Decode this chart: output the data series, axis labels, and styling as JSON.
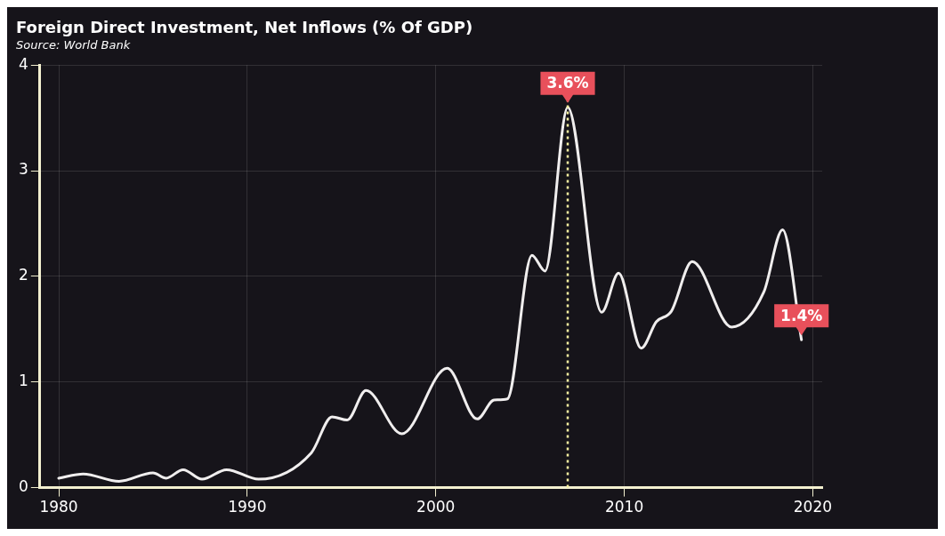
{
  "chart_data": {
    "type": "line",
    "title": "Foreign Direct Investment, Net Inflows (% Of GDP)",
    "subtitle": "Source: World Bank",
    "series": [
      {
        "color": "#f0eeee",
        "x": [
          1980,
          1981.3,
          1983.2,
          1985.0,
          1985.7,
          1986.6,
          1987.6,
          1988.9,
          1990.6,
          1993.4,
          1994.5,
          1995.3,
          1996.3,
          1998.2,
          2000.6,
          2002.2,
          2003.1,
          2003.8,
          2005.1,
          2005.8,
          2007.0,
          2008.8,
          2009.7,
          2010.9,
          2011.7,
          2012.5,
          2013.6,
          2015.7,
          2017.4,
          2018.4,
          2019.4
        ],
        "values": [
          0.09,
          0.13,
          0.06,
          0.14,
          0.09,
          0.17,
          0.08,
          0.17,
          0.08,
          0.33,
          0.67,
          0.64,
          0.92,
          0.51,
          1.13,
          0.65,
          0.83,
          0.84,
          2.2,
          2.05,
          3.6,
          1.66,
          2.03,
          1.32,
          1.57,
          1.67,
          2.14,
          1.52,
          1.85,
          2.44,
          1.4
        ]
      }
    ],
    "xlim": [
      1979,
      2020.5
    ],
    "xticks": [
      1980,
      1990,
      2000,
      2010,
      2020
    ],
    "ylim": [
      0,
      4
    ],
    "yticks": [
      0,
      1,
      2,
      3,
      4
    ],
    "grid": true,
    "legend": false,
    "marker": "none",
    "line_style": "solid",
    "ref_lines": [
      {
        "axis": "x",
        "value": 2007,
        "color": "#f5f0a0",
        "line_style": "dotted"
      }
    ],
    "annotations": [
      {
        "text": "3.6%",
        "x": 2007,
        "y": 3.6
      },
      {
        "text": "1.4%",
        "x": 2019.4,
        "y": 1.4
      }
    ]
  }
}
